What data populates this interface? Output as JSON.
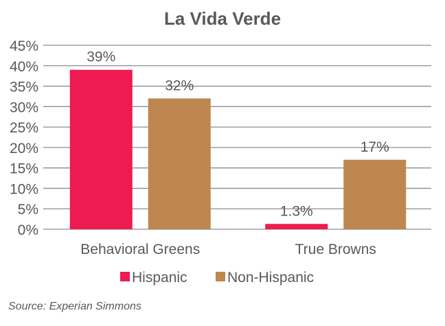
{
  "chart_data": {
    "type": "bar",
    "title": "La Vida Verde",
    "xlabel": "",
    "ylabel": "",
    "ylim": [
      0,
      45
    ],
    "yticks": [
      0,
      5,
      10,
      15,
      20,
      25,
      30,
      35,
      40,
      45
    ],
    "ytick_labels": [
      "0%",
      "5%",
      "10%",
      "15%",
      "20%",
      "25%",
      "30%",
      "35%",
      "40%",
      "45%"
    ],
    "categories": [
      "Behavioral Greens",
      "True Browns"
    ],
    "series": [
      {
        "name": "Hispanic",
        "color": "#EE1A52",
        "values": [
          39,
          1.3
        ],
        "labels": [
          "39%",
          "1.3%"
        ]
      },
      {
        "name": "Non-Hispanic",
        "color": "#BD874F",
        "values": [
          32,
          17
        ],
        "labels": [
          "32%",
          "17%"
        ]
      }
    ],
    "grid": true,
    "legend": "bottom"
  },
  "source": "Source: Experian Simmons"
}
